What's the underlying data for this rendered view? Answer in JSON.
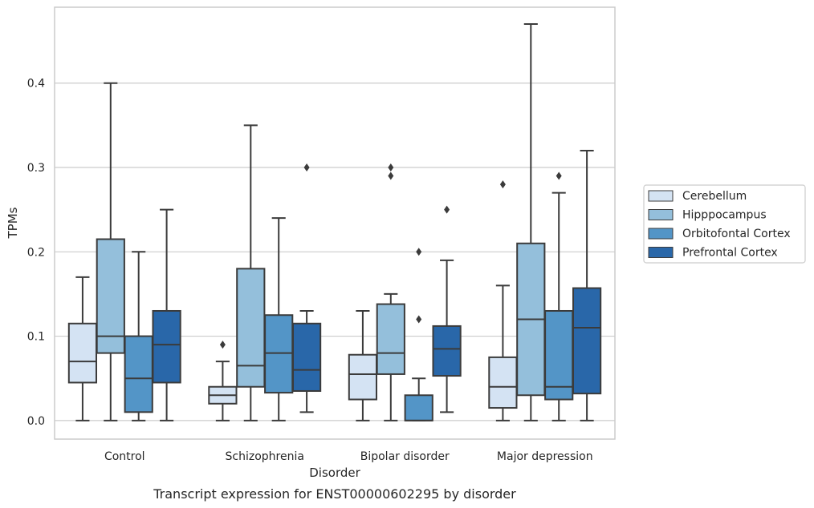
{
  "caption": "Transcript expression for ENST00000602295 by disorder",
  "chart_data": {
    "type": "boxplot",
    "xlabel": "Disorder",
    "ylabel": "TPMs",
    "ylim": [
      -0.022,
      0.49
    ],
    "yticks": [
      0.0,
      0.1,
      0.2,
      0.3,
      0.4
    ],
    "ytick_labels": [
      "0.0",
      "0.1",
      "0.2",
      "0.3",
      "0.4"
    ],
    "grid": "horizontal",
    "legend_position": "right",
    "categories": [
      "Control",
      "Schizophrenia",
      "Bipolar disorder",
      "Major depression"
    ],
    "series": [
      {
        "name": "Cerebellum",
        "color": "#d4e3f3",
        "boxes": [
          {
            "whislo": 0.0,
            "q1": 0.045,
            "med": 0.07,
            "q3": 0.115,
            "whishi": 0.17,
            "fliers": []
          },
          {
            "whislo": 0.0,
            "q1": 0.02,
            "med": 0.03,
            "q3": 0.04,
            "whishi": 0.07,
            "fliers": [
              0.09
            ]
          },
          {
            "whislo": 0.0,
            "q1": 0.025,
            "med": 0.055,
            "q3": 0.078,
            "whishi": 0.13,
            "fliers": []
          },
          {
            "whislo": 0.0,
            "q1": 0.015,
            "med": 0.04,
            "q3": 0.075,
            "whishi": 0.16,
            "fliers": [
              0.28
            ]
          }
        ]
      },
      {
        "name": "Hipppocampus",
        "color": "#94bfdb",
        "boxes": [
          {
            "whislo": 0.0,
            "q1": 0.08,
            "med": 0.1,
            "q3": 0.215,
            "whishi": 0.4,
            "fliers": []
          },
          {
            "whislo": 0.0,
            "q1": 0.04,
            "med": 0.065,
            "q3": 0.18,
            "whishi": 0.35,
            "fliers": []
          },
          {
            "whislo": 0.0,
            "q1": 0.055,
            "med": 0.08,
            "q3": 0.138,
            "whishi": 0.15,
            "fliers": [
              0.29,
              0.3
            ]
          },
          {
            "whislo": 0.0,
            "q1": 0.03,
            "med": 0.12,
            "q3": 0.21,
            "whishi": 0.47,
            "fliers": []
          }
        ]
      },
      {
        "name": "Orbitofontal Cortex",
        "color": "#5395c7",
        "boxes": [
          {
            "whislo": 0.0,
            "q1": 0.01,
            "med": 0.05,
            "q3": 0.1,
            "whishi": 0.2,
            "fliers": []
          },
          {
            "whislo": 0.0,
            "q1": 0.033,
            "med": 0.08,
            "q3": 0.125,
            "whishi": 0.24,
            "fliers": []
          },
          {
            "whislo": 0.0,
            "q1": 0.0,
            "med": 0.0,
            "q3": 0.03,
            "whishi": 0.05,
            "fliers": [
              0.12,
              0.2
            ]
          },
          {
            "whislo": 0.0,
            "q1": 0.025,
            "med": 0.04,
            "q3": 0.13,
            "whishi": 0.27,
            "fliers": [
              0.29
            ]
          }
        ]
      },
      {
        "name": "Prefrontal Cortex",
        "color": "#2967a9",
        "boxes": [
          {
            "whislo": 0.0,
            "q1": 0.045,
            "med": 0.09,
            "q3": 0.13,
            "whishi": 0.25,
            "fliers": []
          },
          {
            "whislo": 0.01,
            "q1": 0.035,
            "med": 0.06,
            "q3": 0.115,
            "whishi": 0.13,
            "fliers": [
              0.3
            ]
          },
          {
            "whislo": 0.01,
            "q1": 0.053,
            "med": 0.085,
            "q3": 0.112,
            "whishi": 0.19,
            "fliers": [
              0.25
            ]
          },
          {
            "whislo": 0.0,
            "q1": 0.032,
            "med": 0.11,
            "q3": 0.157,
            "whishi": 0.32,
            "fliers": []
          }
        ]
      }
    ]
  }
}
